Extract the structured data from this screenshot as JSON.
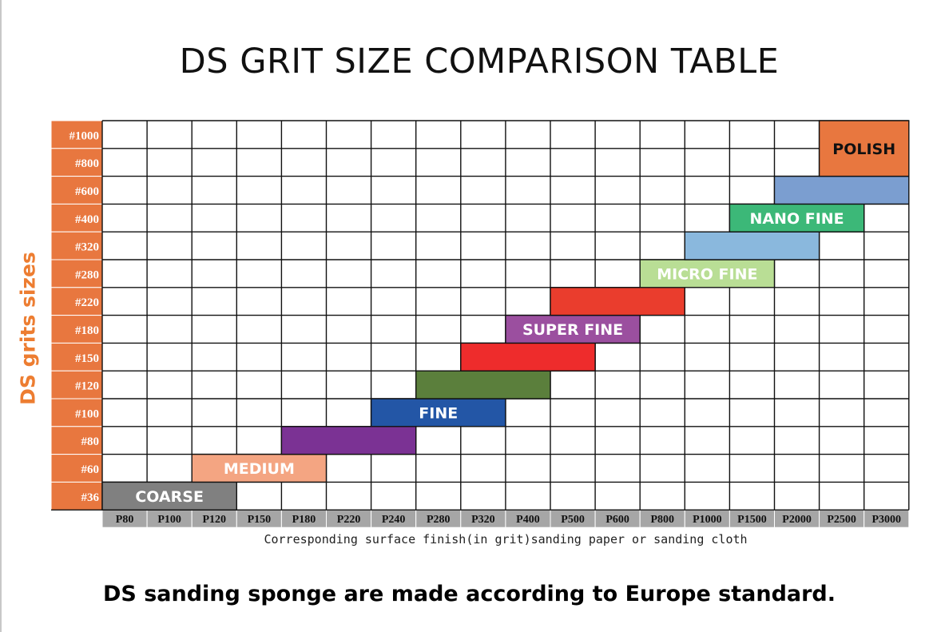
{
  "chart_data": {
    "type": "table",
    "title": "DS GRIT SIZE COMPARISON TABLE",
    "ylabel": "DS grits sizes",
    "xlabel": "Corresponding surface finish(in grit)sanding paper or sanding cloth",
    "rows": [
      "#1000",
      "#800",
      "#600",
      "#400",
      "#320",
      "#280",
      "#220",
      "#180",
      "#150",
      "#120",
      "#100",
      "#80",
      "#60",
      "#36"
    ],
    "columns": [
      "P80",
      "P100",
      "P120",
      "P150",
      "P180",
      "P220",
      "P240",
      "P280",
      "P320",
      "P400",
      "P500",
      "P600",
      "P800",
      "P1000",
      "P1500",
      "P2000",
      "P2500",
      "P3000"
    ],
    "bands": [
      {
        "row": "#36",
        "from": "P80",
        "to": "P120",
        "label": "COARSE",
        "color": "#808080",
        "text_color": "#ffffff"
      },
      {
        "row": "#60",
        "from": "P120",
        "to": "P180",
        "label": "MEDIUM",
        "color": "#f4a582",
        "text_color": "#ffffff"
      },
      {
        "row": "#80",
        "from": "P180",
        "to": "P240",
        "label": "",
        "color": "#7b3294",
        "text_color": "#ffffff"
      },
      {
        "row": "#100",
        "from": "P240",
        "to": "P320",
        "label": "FINE",
        "color": "#2356a6",
        "text_color": "#ffffff"
      },
      {
        "row": "#120",
        "from": "P280",
        "to": "P400",
        "label": "",
        "color": "#5b7f3c",
        "text_color": "#ffffff"
      },
      {
        "row": "#150",
        "from": "P320",
        "to": "P500",
        "label": "",
        "color": "#ee2c2c",
        "text_color": "#ffffff"
      },
      {
        "row": "#180",
        "from": "P400",
        "to": "P600",
        "label": "SUPER FINE",
        "color": "#9b4f9f",
        "text_color": "#ffffff"
      },
      {
        "row": "#220",
        "from": "P500",
        "to": "P800",
        "label": "",
        "color": "#ea3d2d",
        "text_color": "#ffffff"
      },
      {
        "row": "#280",
        "from": "P800",
        "to": "P1500",
        "label": "MICRO FINE",
        "color": "#b9de95",
        "text_color": "#ffffff"
      },
      {
        "row": "#320",
        "from": "P1000",
        "to": "P2000",
        "label": "",
        "color": "#8ab8dd",
        "text_color": "#ffffff"
      },
      {
        "row": "#400",
        "from": "P1500",
        "to": "P2500",
        "label": "NANO FINE",
        "color": "#3cb878",
        "text_color": "#ffffff"
      },
      {
        "row": "#600",
        "from": "P2000",
        "to": "P3000",
        "label": "",
        "color": "#7b9ed0",
        "text_color": "#ffffff"
      },
      {
        "row": "#1000",
        "to_row": "#800",
        "from": "P2500",
        "to": "P3000",
        "label": "POLISH",
        "color": "#e8773f",
        "text_color": "#111111"
      }
    ],
    "row_label_color": "#e8773f",
    "col_label_color": "#a6a6a6"
  },
  "footer": "DS sanding sponge are made according to Europe standard."
}
